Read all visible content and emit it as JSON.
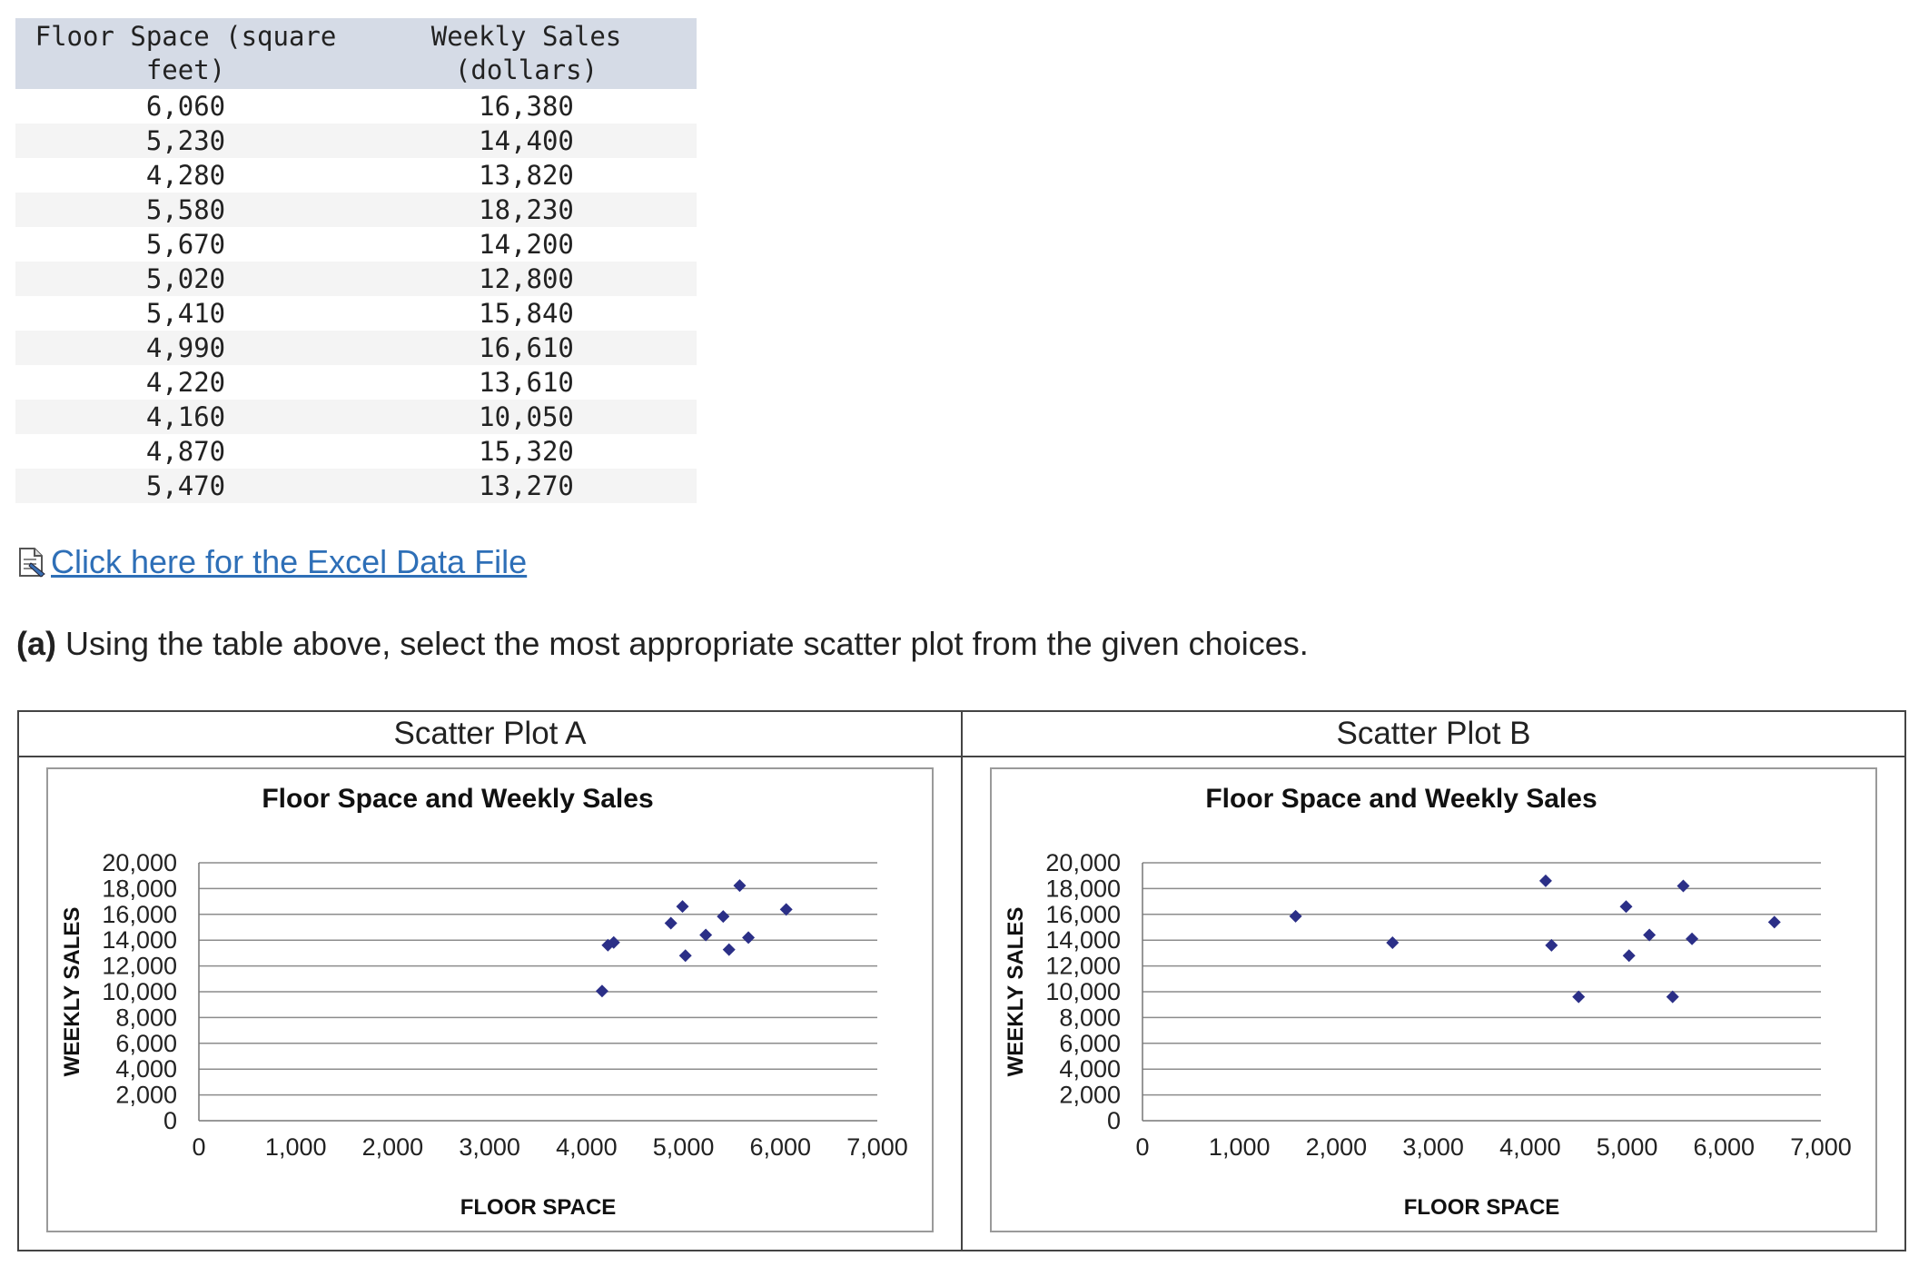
{
  "table": {
    "headers": [
      "Floor Space (square feet)",
      "Weekly Sales (dollars)"
    ],
    "rows": [
      [
        "6,060",
        "16,380"
      ],
      [
        "5,230",
        "14,400"
      ],
      [
        "4,280",
        "13,820"
      ],
      [
        "5,580",
        "18,230"
      ],
      [
        "5,670",
        "14,200"
      ],
      [
        "5,020",
        "12,800"
      ],
      [
        "5,410",
        "15,840"
      ],
      [
        "4,990",
        "16,610"
      ],
      [
        "4,220",
        "13,610"
      ],
      [
        "4,160",
        "10,050"
      ],
      [
        "4,870",
        "15,320"
      ],
      [
        "5,470",
        "13,270"
      ]
    ]
  },
  "link": {
    "text": " Click here for the Excel Data File",
    "icon": "excel-file-icon"
  },
  "question": {
    "label": "(a)",
    "text": " Using the table above, select the most appropriate scatter plot from the given choices."
  },
  "plots": [
    {
      "header": "Scatter Plot A"
    },
    {
      "header": "Scatter Plot B"
    }
  ],
  "colors": {
    "marker": "#2b2f87",
    "grid": "#8c8c8c",
    "link": "#2e6fb7",
    "header_bg": "#d5dbe6"
  },
  "chart_data": [
    {
      "type": "scatter",
      "title": "Floor Space and Weekly Sales",
      "xlabel": "FLOOR SPACE",
      "ylabel": "WEEKLY SALES",
      "xlim": [
        0,
        7000
      ],
      "ylim": [
        0,
        20000
      ],
      "x_ticks": [
        "0",
        "1,000",
        "2,000",
        "3,000",
        "4,000",
        "5,000",
        "6,000",
        "7,000"
      ],
      "y_ticks": [
        "0",
        "2,000",
        "4,000",
        "6,000",
        "8,000",
        "10,000",
        "12,000",
        "14,000",
        "16,000",
        "18,000",
        "20,000"
      ],
      "grid": true,
      "x": [
        6060,
        5230,
        4280,
        5580,
        5670,
        5020,
        5410,
        4990,
        4220,
        4160,
        4870,
        5470
      ],
      "y": [
        16380,
        14400,
        13820,
        18230,
        14200,
        12800,
        15840,
        16610,
        13610,
        10050,
        15320,
        13270
      ]
    },
    {
      "type": "scatter",
      "title": "Floor Space and Weekly Sales",
      "xlabel": "FLOOR SPACE",
      "ylabel": "WEEKLY SALES",
      "xlim": [
        0,
        7000
      ],
      "ylim": [
        0,
        20000
      ],
      "x_ticks": [
        "0",
        "1,000",
        "2,000",
        "3,000",
        "4,000",
        "5,000",
        "6,000",
        "7,000"
      ],
      "y_ticks": [
        "0",
        "2,000",
        "4,000",
        "6,000",
        "8,000",
        "10,000",
        "12,000",
        "14,000",
        "16,000",
        "18,000",
        "20,000"
      ],
      "grid": true,
      "x": [
        1580,
        2580,
        4160,
        4220,
        4500,
        4990,
        5020,
        5230,
        5470,
        5580,
        5670,
        6520
      ],
      "y": [
        15850,
        13800,
        18600,
        13600,
        9600,
        16600,
        12800,
        14400,
        9600,
        18200,
        14100,
        15400
      ]
    }
  ]
}
